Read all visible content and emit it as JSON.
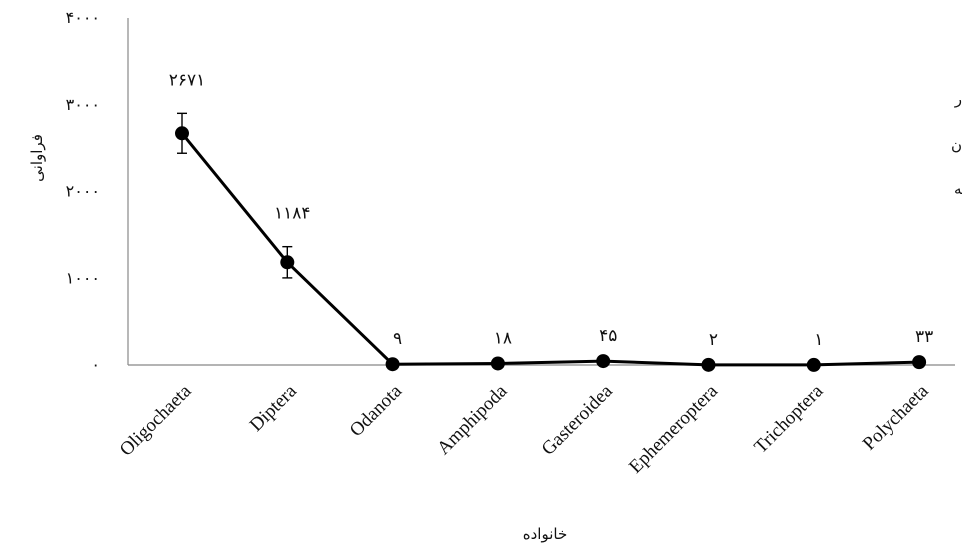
{
  "chart_data": {
    "type": "line",
    "xlabel": "خانواده",
    "ylabel": "فراوانی",
    "ylim": [
      0,
      4000
    ],
    "yticks": [
      0,
      1000,
      2000,
      3000,
      4000
    ],
    "ytick_labels": [
      "۰",
      "۱۰۰۰",
      "۲۰۰۰",
      "۳۰۰۰",
      "۴۰۰۰"
    ],
    "grid": false,
    "categories": [
      "Oligochaeta",
      "Diptera",
      "Odanota",
      "Amphipoda",
      "Gasteroidea",
      "Ephemeroptera",
      "Trichoptera",
      "Polychaeta"
    ],
    "values": [
      2671,
      1184,
      9,
      18,
      45,
      2,
      1,
      33
    ],
    "data_labels": [
      "۲۶۷۱",
      "۱۱۸۴",
      "۹",
      "۱۸",
      "۴۵",
      "۲",
      "۱",
      "۳۳"
    ],
    "error_bars": [
      230,
      180,
      0,
      0,
      0,
      0,
      0,
      0
    ],
    "line_color": "#000000",
    "marker_color": "#000000"
  },
  "side_fragments": [
    "ﺭ",
    "ﻥ",
    "ﻪ"
  ]
}
